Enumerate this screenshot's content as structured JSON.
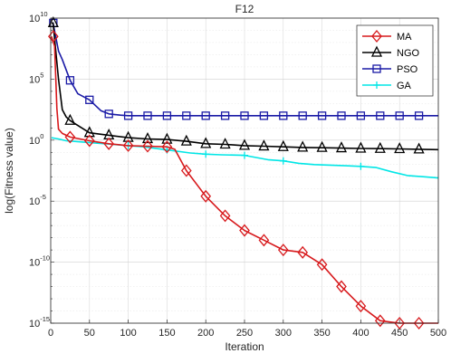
{
  "chart_data": {
    "type": "line",
    "title": "F12",
    "xlabel": "Iteration",
    "ylabel": "log(Fitness value)",
    "xlim": [
      0,
      500
    ],
    "ylim_exponent": [
      -15,
      10
    ],
    "yscale": "log",
    "grid": true,
    "legend_position": "top-right",
    "x_ticks": [
      "0",
      "50",
      "100",
      "150",
      "200",
      "250",
      "300",
      "350",
      "400",
      "450",
      "500"
    ],
    "y_ticks": [
      {
        "base": "10",
        "exp": "10"
      },
      {
        "base": "10",
        "exp": "5"
      },
      {
        "base": "10",
        "exp": "0"
      },
      {
        "base": "10",
        "exp": "-5"
      },
      {
        "base": "10",
        "exp": "-10"
      },
      {
        "base": "10",
        "exp": "-15"
      }
    ],
    "series": [
      {
        "name": "MA",
        "color": "#d7191c",
        "marker": "diamond",
        "points": [
          [
            1,
            8.5
          ],
          [
            5,
            7.7
          ],
          [
            8,
            2.6
          ],
          [
            10,
            0.9
          ],
          [
            15,
            0.55
          ],
          [
            25,
            0.25
          ],
          [
            50,
            -0.05
          ],
          [
            75,
            -0.3
          ],
          [
            100,
            -0.45
          ],
          [
            125,
            -0.5
          ],
          [
            150,
            -0.55
          ],
          [
            160,
            -0.75
          ],
          [
            175,
            -2.5
          ],
          [
            200,
            -4.6
          ],
          [
            225,
            -6.2
          ],
          [
            250,
            -7.4
          ],
          [
            275,
            -8.2
          ],
          [
            300,
            -9.0
          ],
          [
            325,
            -9.2
          ],
          [
            350,
            -10.2
          ],
          [
            375,
            -12.0
          ],
          [
            400,
            -13.6
          ],
          [
            425,
            -14.8
          ],
          [
            450,
            -16.2
          ],
          [
            475,
            -17.4
          ],
          [
            500,
            -18.1
          ]
        ]
      },
      {
        "name": "NGO",
        "color": "#000000",
        "marker": "triangle",
        "points": [
          [
            1,
            9.6
          ],
          [
            3,
            9.6
          ],
          [
            10,
            5.0
          ],
          [
            15,
            2.5
          ],
          [
            20,
            1.9
          ],
          [
            25,
            1.6
          ],
          [
            50,
            0.6
          ],
          [
            75,
            0.4
          ],
          [
            100,
            0.2
          ],
          [
            125,
            0.1
          ],
          [
            150,
            0.05
          ],
          [
            175,
            -0.1
          ],
          [
            200,
            -0.3
          ],
          [
            225,
            -0.35
          ],
          [
            250,
            -0.45
          ],
          [
            275,
            -0.5
          ],
          [
            300,
            -0.55
          ],
          [
            325,
            -0.6
          ],
          [
            350,
            -0.62
          ],
          [
            375,
            -0.65
          ],
          [
            400,
            -0.68
          ],
          [
            425,
            -0.7
          ],
          [
            450,
            -0.72
          ],
          [
            475,
            -0.75
          ],
          [
            500,
            -0.78
          ]
        ]
      },
      {
        "name": "PSO",
        "color": "#1a1aa6",
        "marker": "square",
        "points": [
          [
            1,
            9.6
          ],
          [
            3,
            9.6
          ],
          [
            10,
            7.3
          ],
          [
            15,
            6.6
          ],
          [
            25,
            4.9
          ],
          [
            35,
            3.8
          ],
          [
            50,
            3.3
          ],
          [
            65,
            2.4
          ],
          [
            75,
            2.15
          ],
          [
            90,
            2.05
          ],
          [
            100,
            2.0
          ],
          [
            125,
            2.0
          ],
          [
            150,
            2.0
          ],
          [
            175,
            2.0
          ],
          [
            200,
            2.0
          ],
          [
            225,
            2.0
          ],
          [
            250,
            2.0
          ],
          [
            275,
            2.0
          ],
          [
            300,
            2.0
          ],
          [
            325,
            2.0
          ],
          [
            350,
            2.0
          ],
          [
            375,
            2.0
          ],
          [
            400,
            2.0
          ],
          [
            425,
            2.0
          ],
          [
            450,
            2.0
          ],
          [
            475,
            2.0
          ],
          [
            500,
            2.0
          ]
        ]
      },
      {
        "name": "GA",
        "color": "#00e6e6",
        "marker": "plus",
        "points": [
          [
            1,
            0.2
          ],
          [
            10,
            0.1
          ],
          [
            20,
            -0.05
          ],
          [
            40,
            -0.15
          ],
          [
            60,
            -0.25
          ],
          [
            80,
            -0.35
          ],
          [
            100,
            -0.45
          ],
          [
            120,
            -0.55
          ],
          [
            150,
            -0.8
          ],
          [
            180,
            -1.05
          ],
          [
            200,
            -1.15
          ],
          [
            220,
            -1.2
          ],
          [
            250,
            -1.25
          ],
          [
            280,
            -1.6
          ],
          [
            300,
            -1.7
          ],
          [
            320,
            -1.9
          ],
          [
            340,
            -2.0
          ],
          [
            360,
            -2.05
          ],
          [
            380,
            -2.1
          ],
          [
            400,
            -2.15
          ],
          [
            420,
            -2.25
          ],
          [
            440,
            -2.6
          ],
          [
            460,
            -2.9
          ],
          [
            480,
            -3.0
          ],
          [
            500,
            -3.1
          ]
        ]
      }
    ]
  }
}
